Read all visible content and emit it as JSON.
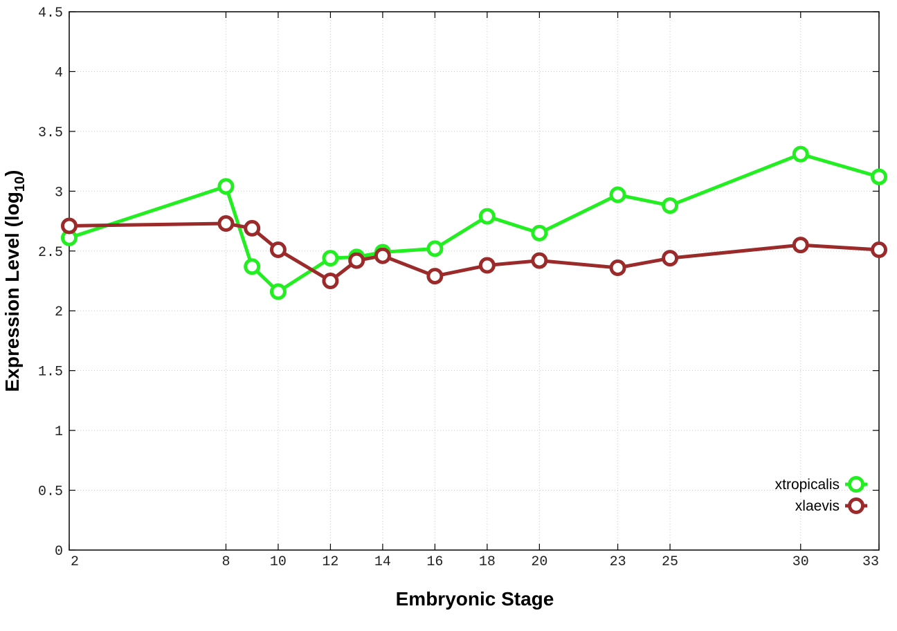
{
  "chart_data": {
    "type": "line",
    "x": [
      2,
      8,
      9,
      10,
      12,
      13,
      14,
      16,
      18,
      20,
      23,
      25,
      30,
      33
    ],
    "x_tick_labels": [
      "2",
      "8",
      "10",
      "12",
      "14",
      "16",
      "18",
      "20",
      "23",
      "25",
      "30",
      "33"
    ],
    "y_tick_labels": [
      "0",
      "0.5",
      "1",
      "1.5",
      "2",
      "2.5",
      "3",
      "3.5",
      "4",
      "4.5"
    ],
    "xlim": [
      2,
      33
    ],
    "ylim": [
      0,
      4.5
    ],
    "xlabel": "Embryonic Stage",
    "ylabel_main": "Expression Level (log",
    "ylabel_sub": "10",
    "ylabel_close": ")",
    "grid": true,
    "legend_position": "bottom-right",
    "series": [
      {
        "name": "xtropicalis",
        "color": "#22ee22",
        "values": [
          2.61,
          3.04,
          2.37,
          2.16,
          2.44,
          2.45,
          2.49,
          2.52,
          2.79,
          2.65,
          2.97,
          2.88,
          3.31,
          3.12
        ]
      },
      {
        "name": "xlaevis",
        "color": "#9b2a2a",
        "values": [
          2.71,
          2.73,
          2.69,
          2.51,
          2.25,
          2.42,
          2.46,
          2.29,
          2.38,
          2.42,
          2.36,
          2.44,
          2.55,
          2.51
        ]
      }
    ]
  }
}
